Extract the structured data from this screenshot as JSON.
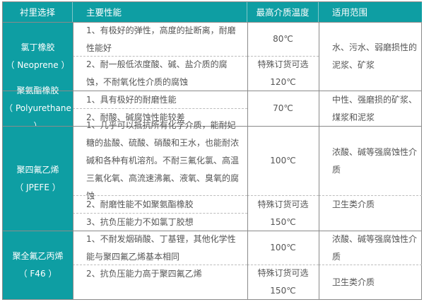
{
  "header": {
    "col1": "衬里选择",
    "col2": "主要性能",
    "col3": "最高介质温度",
    "col4": "适用范围"
  },
  "colors": {
    "header_bg": "#0e9ea3",
    "text": "#555555"
  },
  "rows": [
    {
      "material": "氯丁橡胶",
      "code": "（ Neoprene ）",
      "props": [
        "1、有极好的弹性，高度的扯断离，耐磨性能好",
        "2、耐一般低浓度酸、碱、盐介质的腐蚀，不耐氧化性介质的腐蚀"
      ],
      "temps": [
        {
          "value": "80℃"
        },
        {
          "note": "特殊订货可选",
          "value": "120℃"
        }
      ],
      "scope": [
        "水、污水、弱磨损性的泥浆、矿浆"
      ]
    },
    {
      "material": "聚氨酯橡胶",
      "code": "（ Polyurethane ）",
      "props": [
        "1、具有极好的耐磨性能",
        "2、耐酸、碱腐蚀性能较差"
      ],
      "temps": [
        {
          "value": "70℃"
        }
      ],
      "scope": [
        "中性、强磨损的矿浆、煤浆和泥浆"
      ]
    },
    {
      "material": "聚四氟乙烯",
      "code": "（ JPEFE ）",
      "props": [
        "1、几乎可以抵抗所有化学介质，能耐妃糖的盐酸、硫酸、硝酸和王水，也能耐浓碱和各种有机溶剂。不耐三氟化氯、高温三氟化氧、高流速沸氟、液氧、臭氧的腐蚀",
        "2、耐磨性能不如聚氨酯橡胶",
        "3、抗负压能力不如氯丁胶想"
      ],
      "temps": [
        {
          "value": "100℃"
        },
        {
          "note": "特殊订货可选",
          "value": "150℃"
        }
      ],
      "scope": [
        "浓酸、碱等强腐蚀性介质",
        "卫生类介质"
      ]
    },
    {
      "material": "聚全氟乙丙烯",
      "code": "（ F46 ）",
      "props": [
        "1、不耐发烟硝酸、丁基锂，其他化学性能与聚四氟乙烯基本相同",
        "2、抗负压能力高于聚四氟乙烯"
      ],
      "temps": [
        {
          "value": "100℃"
        },
        {
          "note": "特殊订货可选",
          "value": "150℃"
        }
      ],
      "scope": [
        "浓酸、碱等强腐蚀性介质",
        "卫生类介质"
      ]
    }
  ]
}
